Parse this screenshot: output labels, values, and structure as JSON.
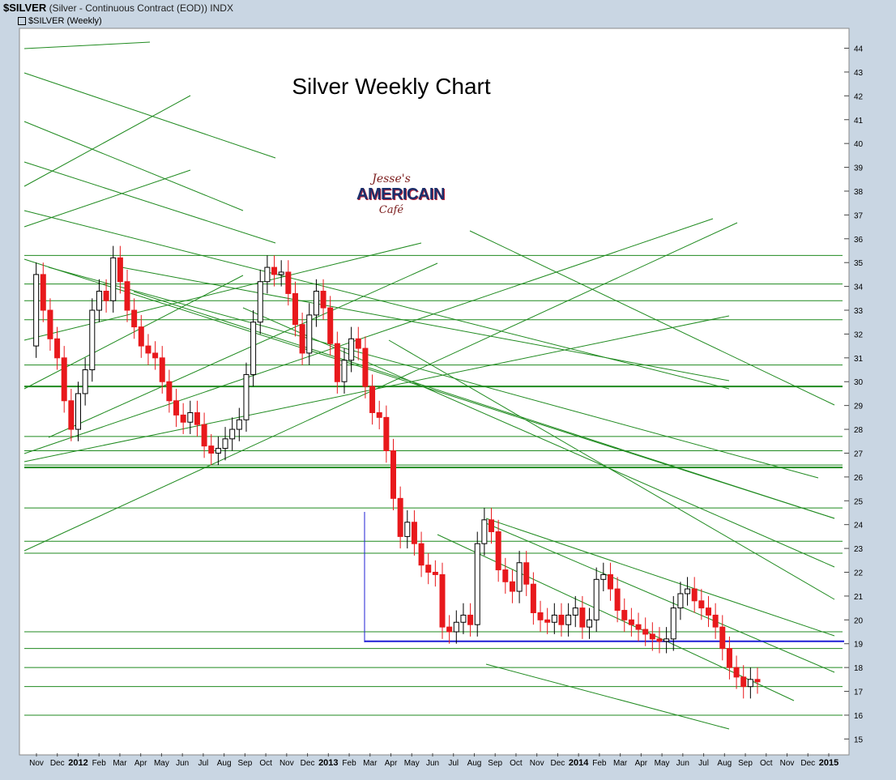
{
  "header": {
    "symbol": "$SILVER",
    "description": "(Silver - Continuous Contract (EOD))",
    "exchange": "INDX",
    "series_label": "$SILVER (Weekly)"
  },
  "logo": {
    "line1": "Jesse's",
    "line2": "AMERICAIN",
    "line3": "Café"
  },
  "colors": {
    "up": "#ffffff",
    "down": "#e8191c",
    "trendline": "#1f8a1f",
    "support": "#1f1fd6",
    "background": "#ffffff",
    "frame": "#c9d6e3"
  },
  "chart_data": {
    "type": "candlestick",
    "title": "Silver Weekly Chart",
    "ylim": [
      14.4,
      44.8
    ],
    "y_ticks": [
      15,
      16,
      17,
      18,
      19,
      20,
      21,
      22,
      23,
      24,
      25,
      26,
      27,
      28,
      29,
      30,
      31,
      32,
      33,
      34,
      35,
      36,
      37,
      38,
      39,
      40,
      41,
      42,
      43,
      44
    ],
    "x_tick_labels": [
      "Nov",
      "Dec",
      "2012",
      "Feb",
      "Mar",
      "Apr",
      "May",
      "Jun",
      "Jul",
      "Aug",
      "Sep",
      "Oct",
      "Nov",
      "Dec",
      "2013",
      "Feb",
      "Mar",
      "Apr",
      "May",
      "Jun",
      "Jul",
      "Aug",
      "Sep",
      "Oct",
      "Nov",
      "Dec",
      "2014",
      "Feb",
      "Mar",
      "Apr",
      "May",
      "Jun",
      "Jul",
      "Aug",
      "Sep",
      "Oct",
      "Nov",
      "Dec",
      "2015"
    ],
    "support_level": 19.1,
    "series": [
      {
        "name": "$SILVER (Weekly)",
        "weekly_close_path": [
          31.5,
          34.5,
          33.0,
          31.8,
          31.0,
          29.2,
          28.0,
          29.5,
          30.5,
          33.0,
          33.8,
          33.4,
          35.2,
          34.2,
          33.0,
          32.3,
          31.5,
          31.2,
          31.0,
          30.0,
          29.2,
          28.6,
          28.3,
          28.7,
          28.2,
          27.3,
          27.0,
          27.2,
          27.6,
          28.0,
          28.4,
          30.3,
          32.5,
          34.2,
          34.8,
          34.5,
          34.6,
          33.7,
          32.4,
          31.2,
          32.8,
          33.8,
          33.1,
          31.6,
          30.0,
          30.9,
          31.8,
          31.4,
          29.8,
          28.7,
          28.5,
          27.1,
          25.1,
          23.5,
          24.1,
          23.2,
          22.3,
          22.0,
          21.9,
          19.7,
          19.5,
          19.9,
          20.2,
          19.8,
          23.2,
          24.2,
          23.7,
          22.1,
          21.6,
          21.2,
          22.4,
          21.5,
          20.3,
          20.0,
          19.9,
          20.2,
          19.8,
          20.2,
          20.5,
          19.7,
          20.0,
          21.7,
          21.9,
          21.3,
          20.4,
          20.0,
          19.8,
          19.6,
          19.4,
          19.2,
          19.1,
          19.2,
          20.5,
          21.1,
          21.3,
          20.8,
          20.5,
          20.2,
          19.7,
          18.8,
          18.0,
          17.6,
          17.2,
          17.5,
          17.4
        ]
      }
    ]
  }
}
